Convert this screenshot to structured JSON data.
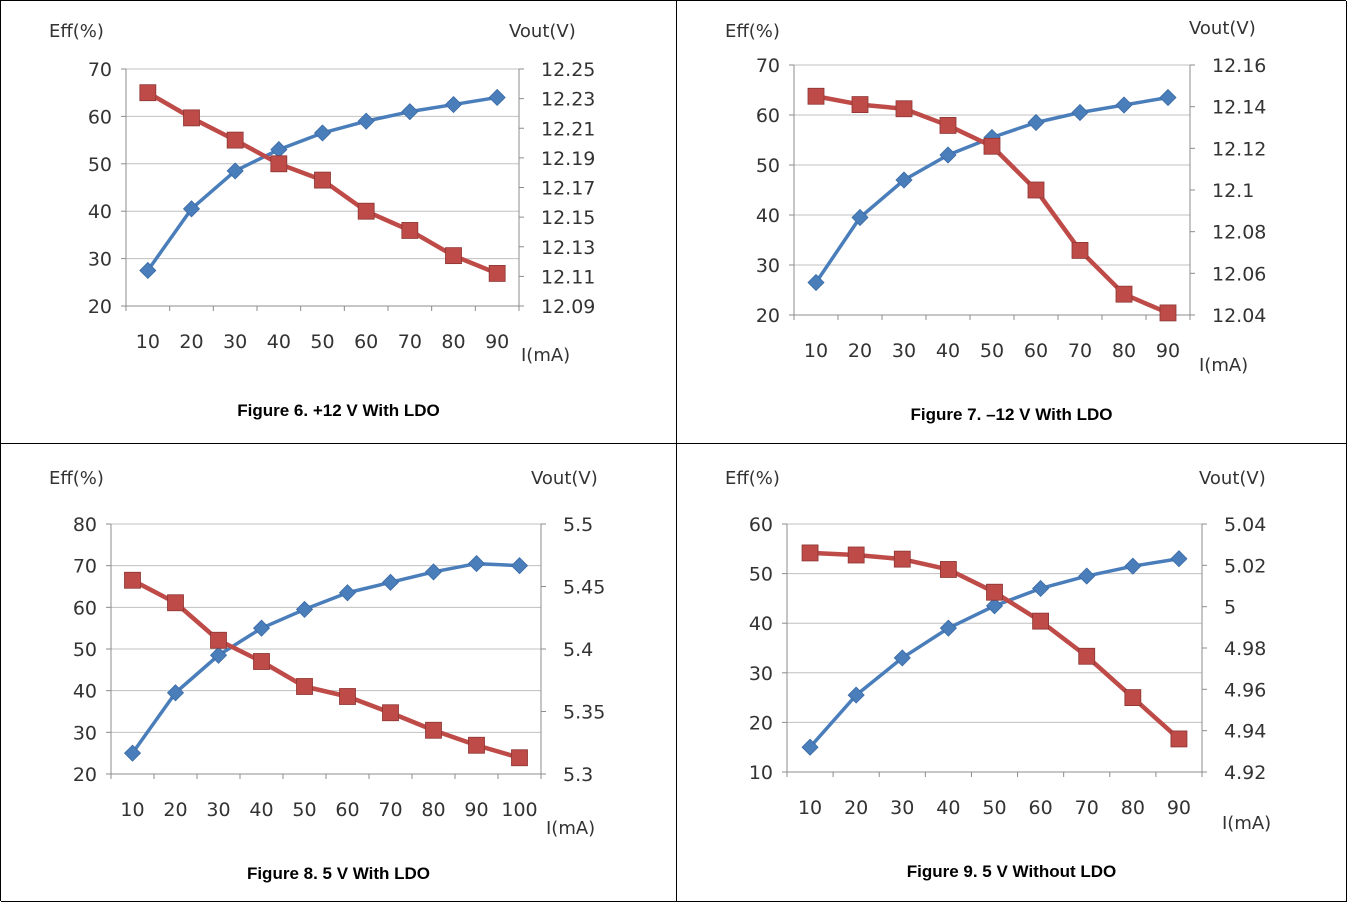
{
  "colors": {
    "efficiency": "#4a7ebb",
    "vout": "#be4b48",
    "axis": "#8c8c8c",
    "grid": "#c0c0c0",
    "text": "#333333"
  },
  "chart_data": [
    {
      "type": "line",
      "caption": "Figure 6. +12 V With LDO",
      "left_axis_label": "Eff(%)",
      "right_axis_label": "Vout(V)",
      "x_axis_label": "I(mA)",
      "categories": [
        "10",
        "20",
        "30",
        "40",
        "50",
        "60",
        "70",
        "80",
        "90"
      ],
      "y_left": {
        "range": [
          20,
          70
        ],
        "ticks": [
          "20",
          "30",
          "40",
          "50",
          "60",
          "70"
        ]
      },
      "y_right": {
        "range": [
          12.09,
          12.25
        ],
        "ticks": [
          "12.09",
          "12.11",
          "12.13",
          "12.15",
          "12.17",
          "12.19",
          "12.21",
          "12.23",
          "12.25"
        ]
      },
      "grid": true,
      "series": [
        {
          "axis": "left",
          "marker": "diamond",
          "color": "#4a7ebb",
          "values": [
            27.5,
            40.5,
            48.5,
            53,
            56.5,
            59,
            61,
            62.5,
            64
          ]
        },
        {
          "axis": "right",
          "marker": "square",
          "color": "#be4b48",
          "values": [
            12.234,
            12.217,
            12.202,
            12.186,
            12.175,
            12.154,
            12.141,
            12.124,
            12.112
          ]
        }
      ]
    },
    {
      "type": "line",
      "caption": "Figure 7. –12 V With LDO",
      "left_axis_label": "Eff(%)",
      "right_axis_label": "Vout(V)",
      "x_axis_label": "I(mA)",
      "categories": [
        "10",
        "20",
        "30",
        "40",
        "50",
        "60",
        "70",
        "80",
        "90"
      ],
      "y_left": {
        "range": [
          20,
          70
        ],
        "ticks": [
          "20",
          "30",
          "40",
          "50",
          "60",
          "70"
        ]
      },
      "y_right": {
        "range": [
          12.04,
          12.16
        ],
        "ticks": [
          "12.04",
          "12.06",
          "12.08",
          "12.1",
          "12.12",
          "12.14",
          "12.16"
        ]
      },
      "grid": true,
      "series": [
        {
          "axis": "left",
          "marker": "diamond",
          "color": "#4a7ebb",
          "values": [
            26.5,
            39.5,
            47,
            52,
            55.5,
            58.5,
            60.5,
            62,
            63.5
          ]
        },
        {
          "axis": "right",
          "marker": "square",
          "color": "#be4b48",
          "values": [
            12.145,
            12.141,
            12.139,
            12.131,
            12.121,
            12.1,
            12.071,
            12.05,
            12.041
          ]
        }
      ]
    },
    {
      "type": "line",
      "caption": "Figure 8. 5 V With LDO",
      "left_axis_label": "Eff(%)",
      "right_axis_label": "Vout(V)",
      "x_axis_label": "I(mA)",
      "categories": [
        "10",
        "20",
        "30",
        "40",
        "50",
        "60",
        "70",
        "80",
        "90",
        "100"
      ],
      "y_left": {
        "range": [
          20,
          80
        ],
        "ticks": [
          "20",
          "30",
          "40",
          "50",
          "60",
          "70",
          "80"
        ]
      },
      "y_right": {
        "range": [
          5.3,
          5.5
        ],
        "ticks": [
          "5.3",
          "5.35",
          "5.4",
          "5.45",
          "5.5"
        ]
      },
      "grid": true,
      "series": [
        {
          "axis": "left",
          "marker": "diamond",
          "color": "#4a7ebb",
          "values": [
            25,
            39.5,
            48.5,
            55,
            59.5,
            63.5,
            66,
            68.5,
            70.5,
            70
          ]
        },
        {
          "axis": "right",
          "marker": "square",
          "color": "#be4b48",
          "values": [
            5.455,
            5.437,
            5.407,
            5.39,
            5.37,
            5.362,
            5.349,
            5.335,
            5.323,
            5.313
          ]
        }
      ]
    },
    {
      "type": "line",
      "caption": "Figure 9. 5 V Without LDO",
      "left_axis_label": "Eff(%)",
      "right_axis_label": "Vout(V)",
      "x_axis_label": "I(mA)",
      "categories": [
        "10",
        "20",
        "30",
        "40",
        "50",
        "60",
        "70",
        "80",
        "90"
      ],
      "y_left": {
        "range": [
          10,
          60
        ],
        "ticks": [
          "10",
          "20",
          "30",
          "40",
          "50",
          "60"
        ]
      },
      "y_right": {
        "range": [
          4.92,
          5.04
        ],
        "ticks": [
          "4.92",
          "4.94",
          "4.96",
          "4.98",
          "5",
          "5.02",
          "5.04"
        ]
      },
      "grid": true,
      "series": [
        {
          "axis": "left",
          "marker": "diamond",
          "color": "#4a7ebb",
          "values": [
            15,
            25.5,
            33,
            39,
            43.5,
            47,
            49.5,
            51.5,
            53
          ]
        },
        {
          "axis": "right",
          "marker": "square",
          "color": "#be4b48",
          "values": [
            5.026,
            5.025,
            5.023,
            5.018,
            5.007,
            4.993,
            4.976,
            4.956,
            4.936
          ]
        }
      ]
    }
  ]
}
